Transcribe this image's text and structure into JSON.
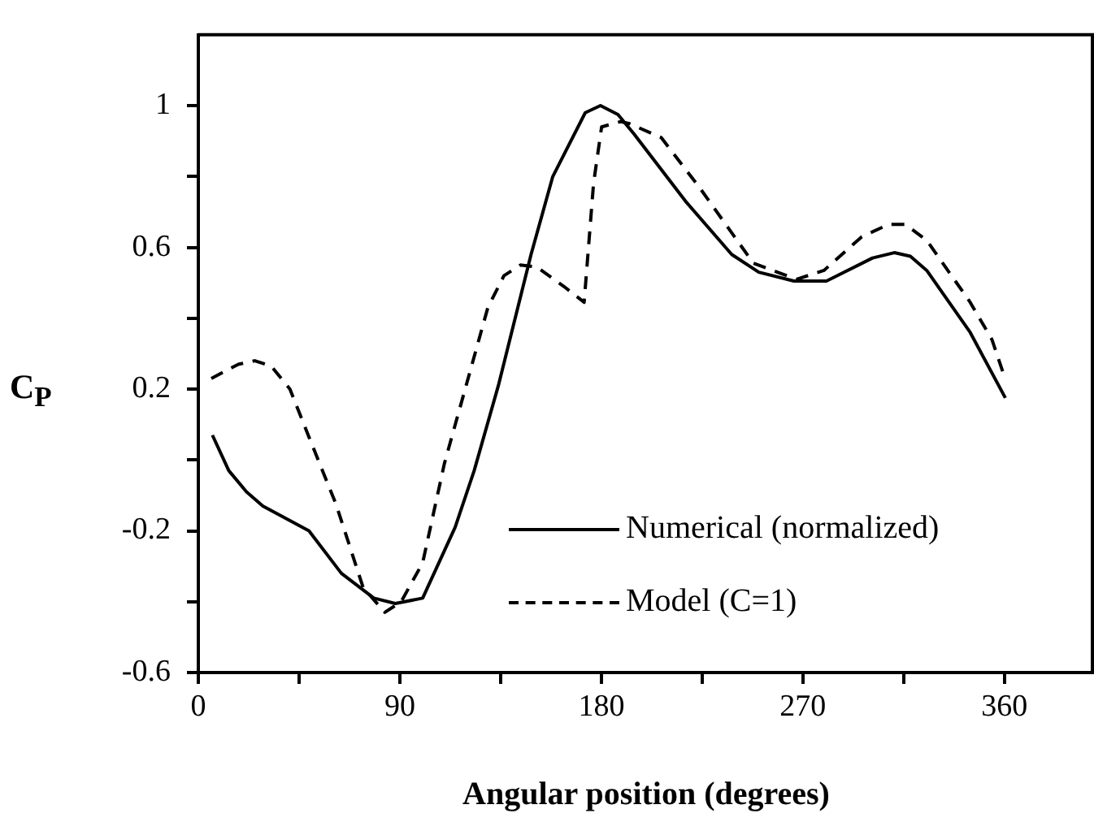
{
  "chart_data": {
    "type": "line",
    "xlabel": "Angular position (degrees)",
    "ylabel": "C$_{P}$",
    "xlim": [
      0,
      400
    ],
    "xticks": [
      0,
      {
        "value": 45,
        "label": null
      },
      90,
      {
        "value": 135,
        "label": null
      },
      180,
      {
        "value": 225,
        "label": null
      },
      270,
      {
        "value": 315,
        "label": null
      },
      360
    ],
    "ylim": [
      -0.6,
      1.2
    ],
    "yticks": [
      -0.6,
      {
        "value": -0.4,
        "label": null
      },
      -0.2,
      {
        "value": 0,
        "label": null
      },
      0.2,
      {
        "value": 0.4,
        "label": null
      },
      0.6,
      {
        "value": 0.8,
        "label": null
      },
      1
    ],
    "grid": false,
    "legend": "bottom right",
    "marker": "none",
    "series": [
      {
        "name": "Numerical (normalized)",
        "color": "#000000",
        "line_style": "solid",
        "x": [
          6.3,
          13.6,
          21.5,
          28.8,
          49.4,
          63.9,
          78.4,
          88,
          100.2,
          114.7,
          123.2,
          134,
          148.6,
          158.3,
          172.8,
          179.6,
          187.4,
          194.6,
          217.6,
          238.2,
          250.3,
          266,
          280.5,
          301.1,
          310.8,
          318,
          325.3,
          344.7,
          360.4
        ],
        "values": [
          0.07,
          -0.03,
          -0.09,
          -0.13,
          -0.2,
          -0.32,
          -0.39,
          -0.405,
          -0.39,
          -0.19,
          -0.03,
          0.21,
          0.58,
          0.8,
          0.98,
          1.0,
          0.975,
          0.92,
          0.73,
          0.58,
          0.53,
          0.505,
          0.505,
          0.57,
          0.585,
          0.575,
          0.535,
          0.36,
          0.175
        ]
      },
      {
        "name": "Model (C=1)",
        "color": "#000000",
        "line_style": "dashed",
        "x": [
          5.8,
          17.9,
          25.2,
          32.5,
          40.9,
          49.4,
          61.5,
          73.6,
          83.3,
          90.6,
          100.2,
          109.9,
          119.6,
          129.3,
          136.5,
          143.8,
          151,
          163.2,
          172.3,
          176.5,
          180.1,
          188.6,
          192.2,
          206.7,
          223.7,
          247.9,
          267.2,
          279.4,
          296.3,
          308.4,
          315.7,
          325.3,
          344.7,
          354.4,
          359.2
        ],
        "values": [
          0.23,
          0.27,
          0.28,
          0.265,
          0.2,
          0.065,
          -0.125,
          -0.36,
          -0.43,
          -0.4,
          -0.29,
          -0.01,
          0.21,
          0.43,
          0.52,
          0.55,
          0.545,
          0.49,
          0.445,
          0.78,
          0.94,
          0.955,
          0.95,
          0.91,
          0.77,
          0.555,
          0.51,
          0.535,
          0.63,
          0.665,
          0.665,
          0.62,
          0.445,
          0.34,
          0.25
        ]
      }
    ]
  }
}
